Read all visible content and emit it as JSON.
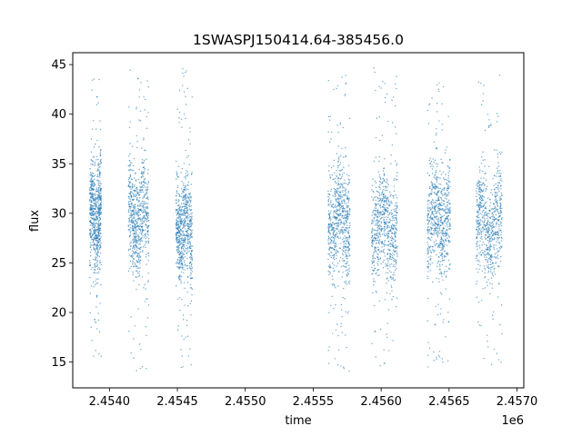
{
  "chart_data": {
    "type": "scatter",
    "title": "1SWASPJ150414.64-385456.0",
    "xlabel": "time",
    "ylabel": "flux",
    "x_offset_label": "1e6",
    "xlim": [
      2453730,
      2457050
    ],
    "ylim": [
      12.4,
      46.2
    ],
    "grid": false,
    "legend": "none",
    "marker_color": "#1f77b4",
    "x_ticks": [
      {
        "value": 2454000,
        "label": "2.4540"
      },
      {
        "value": 2454500,
        "label": "2.4545"
      },
      {
        "value": 2455000,
        "label": "2.4550"
      },
      {
        "value": 2455500,
        "label": "2.4555"
      },
      {
        "value": 2456000,
        "label": "2.4560"
      },
      {
        "value": 2456500,
        "label": "2.4565"
      },
      {
        "value": 2457000,
        "label": "2.4570"
      }
    ],
    "y_ticks": [
      {
        "value": 15,
        "label": "15"
      },
      {
        "value": 20,
        "label": "20"
      },
      {
        "value": 25,
        "label": "25"
      },
      {
        "value": 30,
        "label": "30"
      },
      {
        "value": 35,
        "label": "35"
      },
      {
        "value": 40,
        "label": "40"
      },
      {
        "value": 45,
        "label": "45"
      }
    ],
    "observing_seasons": [
      {
        "t_start": 2453855,
        "t_end": 2453940,
        "flux_median": 29.5,
        "flux_min": 15.5,
        "flux_max": 44.3
      },
      {
        "t_start": 2454140,
        "t_end": 2454290,
        "flux_median": 29.5,
        "flux_min": 14.0,
        "flux_max": 44.5
      },
      {
        "t_start": 2454490,
        "t_end": 2454610,
        "flux_median": 28.5,
        "flux_min": 14.0,
        "flux_max": 44.6
      },
      {
        "t_start": 2455610,
        "t_end": 2455770,
        "flux_median": 29.5,
        "flux_min": 14.0,
        "flux_max": 44.0
      },
      {
        "t_start": 2455930,
        "t_end": 2456120,
        "flux_median": 29.0,
        "flux_min": 14.0,
        "flux_max": 44.7
      },
      {
        "t_start": 2456340,
        "t_end": 2456510,
        "flux_median": 29.5,
        "flux_min": 14.5,
        "flux_max": 43.5
      },
      {
        "t_start": 2456700,
        "t_end": 2456890,
        "flux_median": 29.0,
        "flux_min": 14.0,
        "flux_max": 44.2
      }
    ]
  }
}
